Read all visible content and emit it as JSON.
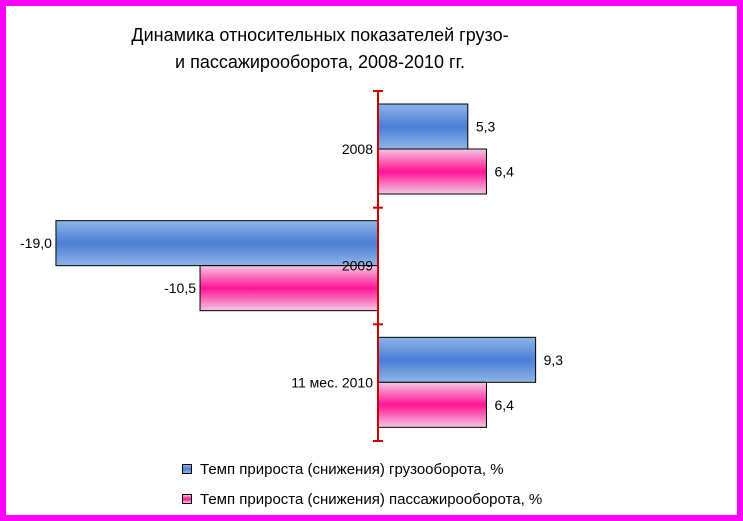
{
  "title_line1": "Динамика относительных показателей грузо-",
  "title_line2": "и пассажирооборота, 2008-2010 гг.",
  "colors": {
    "frame": "#ff00ff",
    "axis": "#cc0000",
    "series1_edge": "#8fb4e8",
    "series1_mid": "#4a7fd4",
    "series2_edge": "#f3c7e3",
    "series2_mid": "#ff1493"
  },
  "chart_data": {
    "type": "bar",
    "orientation": "horizontal",
    "categories": [
      "2008",
      "2009",
      "11 мес. 2010"
    ],
    "series": [
      {
        "name": "Темп прироста (снижения) грузооборота, %",
        "values": [
          5.3,
          -19.0,
          9.3
        ],
        "labels": [
          "5,3",
          "-19,0",
          "9,3"
        ]
      },
      {
        "name": "Темп прироста (снижения) пассажирооборота, %",
        "values": [
          6.4,
          -10.5,
          6.4
        ],
        "labels": [
          "6,4",
          "-10,5",
          "6,4"
        ]
      }
    ],
    "xlim": [
      -19.0,
      9.3
    ],
    "legend_position": "bottom",
    "grid": false
  }
}
